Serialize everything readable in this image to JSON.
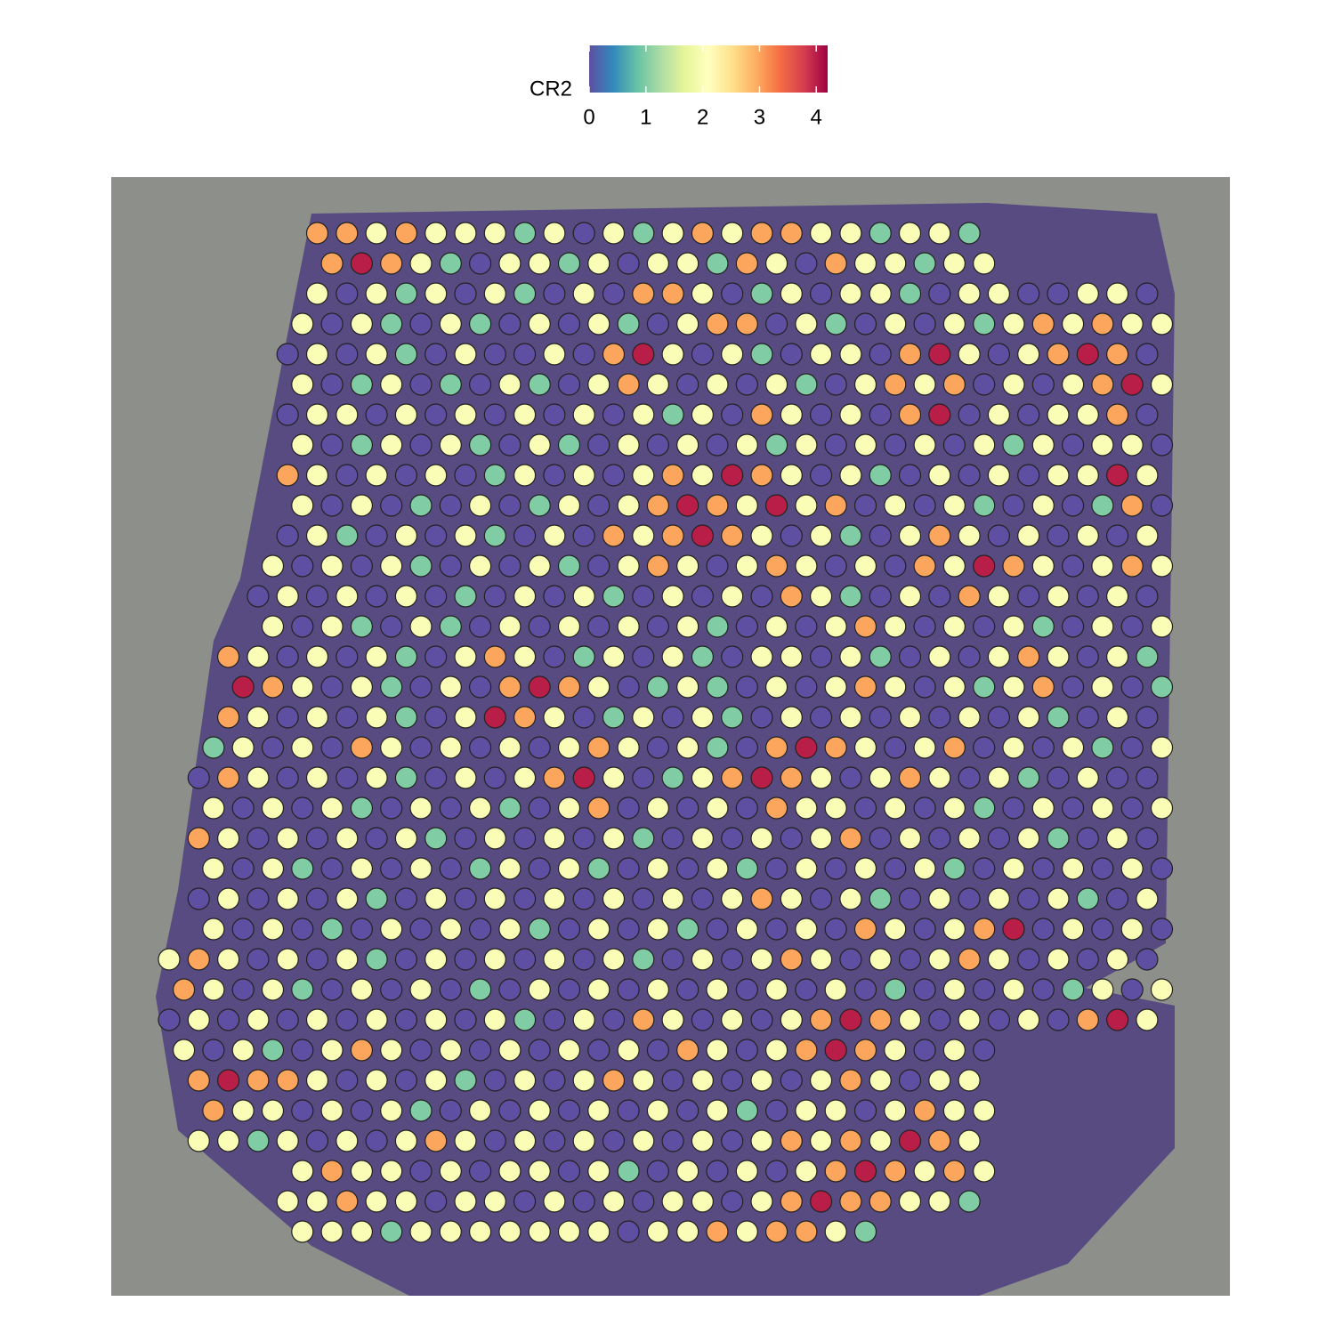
{
  "chart_data": {
    "type": "spatial",
    "colorbar": {
      "title": "CR2",
      "limits": [
        0,
        4.2
      ],
      "ticks": [
        0,
        1,
        2,
        3,
        4
      ],
      "colors": [
        "#5e4fa2",
        "#3288bd",
        "#66c2a5",
        "#abdda4",
        "#e6f598",
        "#ffffbf",
        "#fee08b",
        "#fdae61",
        "#f46d43",
        "#d53e4f",
        "#9e0142"
      ]
    },
    "spots": [
      [
        null,
        null,
        null,
        null,
        null,
        3,
        3,
        2,
        3,
        2,
        2,
        2,
        1,
        2,
        0,
        2,
        1,
        2,
        3,
        2,
        3,
        3,
        2,
        2,
        1,
        2,
        2,
        1,
        null,
        null,
        null,
        null,
        null,
        null
      ],
      [
        null,
        null,
        null,
        null,
        null,
        3,
        4,
        3,
        2,
        1,
        0,
        2,
        2,
        1,
        2,
        0,
        2,
        2,
        1,
        3,
        2,
        0,
        3,
        2,
        2,
        1,
        2,
        2,
        null,
        null,
        null,
        null,
        null,
        null
      ],
      [
        null,
        null,
        null,
        null,
        null,
        2,
        0,
        2,
        1,
        2,
        0,
        2,
        1,
        0,
        2,
        0,
        3,
        3,
        2,
        0,
        1,
        2,
        0,
        2,
        2,
        1,
        0,
        2,
        2,
        0,
        0,
        2,
        2,
        0
      ],
      [
        null,
        null,
        null,
        null,
        2,
        0,
        2,
        1,
        0,
        2,
        1,
        0,
        2,
        0,
        2,
        1,
        0,
        2,
        3,
        3,
        0,
        2,
        1,
        0,
        2,
        0,
        2,
        1,
        2,
        3,
        2,
        3,
        2,
        2
      ],
      [
        null,
        null,
        null,
        null,
        0,
        2,
        0,
        2,
        1,
        0,
        2,
        0,
        0,
        2,
        0,
        3,
        4,
        2,
        0,
        2,
        1,
        0,
        2,
        2,
        0,
        3,
        4,
        2,
        0,
        2,
        3,
        4,
        3,
        0
      ],
      [
        null,
        null,
        null,
        null,
        2,
        0,
        1,
        2,
        0,
        1,
        0,
        2,
        1,
        0,
        2,
        3,
        2,
        0,
        2,
        0,
        2,
        1,
        0,
        2,
        3,
        2,
        3,
        0,
        2,
        0,
        2,
        3,
        4,
        2
      ],
      [
        null,
        null,
        null,
        null,
        0,
        2,
        2,
        0,
        2,
        0,
        2,
        0,
        2,
        0,
        2,
        0,
        2,
        1,
        2,
        0,
        3,
        2,
        0,
        2,
        0,
        3,
        4,
        0,
        2,
        0,
        2,
        2,
        3,
        0
      ],
      [
        null,
        null,
        null,
        null,
        2,
        0,
        1,
        2,
        0,
        2,
        1,
        0,
        2,
        1,
        0,
        2,
        0,
        2,
        0,
        2,
        1,
        2,
        0,
        2,
        0,
        2,
        0,
        2,
        1,
        2,
        0,
        2,
        2,
        0
      ],
      [
        null,
        null,
        null,
        null,
        3,
        2,
        0,
        2,
        0,
        2,
        0,
        1,
        2,
        0,
        2,
        0,
        2,
        3,
        2,
        4,
        3,
        2,
        0,
        2,
        1,
        0,
        2,
        0,
        2,
        0,
        2,
        2,
        4,
        2
      ],
      [
        null,
        null,
        null,
        null,
        2,
        0,
        2,
        0,
        1,
        0,
        2,
        0,
        1,
        2,
        0,
        2,
        3,
        4,
        3,
        2,
        4,
        2,
        3,
        0,
        2,
        0,
        2,
        1,
        0,
        2,
        0,
        1,
        3,
        0
      ],
      [
        null,
        null,
        null,
        null,
        0,
        2,
        1,
        0,
        2,
        0,
        2,
        1,
        0,
        2,
        0,
        3,
        2,
        3,
        4,
        3,
        2,
        0,
        2,
        1,
        0,
        2,
        3,
        2,
        0,
        2,
        0,
        2,
        0,
        2
      ],
      [
        null,
        null,
        null,
        2,
        0,
        2,
        0,
        2,
        1,
        0,
        2,
        0,
        2,
        1,
        0,
        2,
        3,
        2,
        0,
        2,
        3,
        2,
        0,
        2,
        0,
        3,
        2,
        4,
        3,
        2,
        0,
        2,
        3,
        2
      ],
      [
        null,
        null,
        null,
        0,
        2,
        0,
        2,
        0,
        2,
        0,
        1,
        0,
        2,
        0,
        2,
        1,
        0,
        2,
        0,
        2,
        0,
        3,
        2,
        1,
        0,
        2,
        0,
        3,
        2,
        0,
        2,
        0,
        2,
        0
      ],
      [
        null,
        null,
        null,
        2,
        0,
        2,
        1,
        0,
        2,
        1,
        0,
        2,
        0,
        2,
        0,
        2,
        0,
        2,
        1,
        0,
        2,
        0,
        2,
        3,
        2,
        0,
        2,
        0,
        2,
        1,
        0,
        2,
        0,
        2
      ],
      [
        null,
        null,
        3,
        2,
        0,
        2,
        0,
        2,
        1,
        0,
        2,
        3,
        2,
        0,
        1,
        2,
        0,
        2,
        1,
        0,
        2,
        2,
        0,
        2,
        1,
        0,
        2,
        0,
        2,
        3,
        2,
        0,
        2,
        1
      ],
      [
        null,
        null,
        4,
        3,
        2,
        0,
        2,
        1,
        0,
        2,
        0,
        3,
        4,
        3,
        2,
        0,
        1,
        2,
        1,
        0,
        2,
        0,
        2,
        3,
        2,
        0,
        2,
        1,
        2,
        3,
        0,
        2,
        0,
        1
      ],
      [
        null,
        null,
        3,
        2,
        0,
        2,
        0,
        2,
        1,
        0,
        2,
        4,
        3,
        2,
        0,
        1,
        2,
        0,
        2,
        1,
        0,
        2,
        0,
        2,
        0,
        2,
        0,
        2,
        0,
        2,
        1,
        0,
        2,
        0
      ],
      [
        null,
        1,
        2,
        0,
        2,
        0,
        3,
        2,
        0,
        2,
        0,
        2,
        0,
        2,
        3,
        2,
        0,
        2,
        1,
        0,
        3,
        4,
        3,
        2,
        0,
        2,
        3,
        0,
        2,
        0,
        2,
        1,
        0,
        2
      ],
      [
        null,
        0,
        3,
        2,
        0,
        2,
        0,
        2,
        1,
        0,
        2,
        0,
        2,
        3,
        4,
        2,
        0,
        1,
        2,
        3,
        4,
        3,
        2,
        0,
        2,
        3,
        2,
        0,
        2,
        1,
        0,
        2,
        0,
        0
      ],
      [
        null,
        2,
        0,
        2,
        0,
        2,
        1,
        0,
        2,
        0,
        2,
        1,
        0,
        2,
        3,
        0,
        2,
        0,
        2,
        0,
        3,
        2,
        2,
        0,
        2,
        0,
        2,
        1,
        0,
        2,
        0,
        2,
        0,
        2
      ],
      [
        null,
        3,
        2,
        0,
        2,
        0,
        2,
        0,
        2,
        1,
        0,
        2,
        0,
        2,
        0,
        2,
        1,
        0,
        2,
        0,
        2,
        0,
        2,
        3,
        0,
        2,
        0,
        2,
        0,
        2,
        1,
        0,
        2,
        0
      ],
      [
        null,
        2,
        0,
        2,
        1,
        0,
        2,
        0,
        2,
        0,
        1,
        2,
        0,
        2,
        1,
        0,
        2,
        0,
        2,
        1,
        0,
        2,
        0,
        2,
        0,
        2,
        1,
        0,
        2,
        0,
        2,
        0,
        2,
        0
      ],
      [
        null,
        0,
        2,
        0,
        2,
        0,
        2,
        1,
        0,
        2,
        0,
        2,
        0,
        2,
        0,
        2,
        0,
        2,
        0,
        2,
        3,
        2,
        0,
        2,
        1,
        0,
        2,
        0,
        2,
        0,
        2,
        1,
        0,
        2
      ],
      [
        null,
        2,
        0,
        2,
        0,
        1,
        0,
        2,
        0,
        2,
        0,
        2,
        1,
        0,
        2,
        0,
        2,
        1,
        0,
        2,
        0,
        2,
        0,
        3,
        2,
        0,
        2,
        3,
        4,
        0,
        2,
        0,
        2,
        0
      ],
      [
        2,
        3,
        2,
        0,
        2,
        0,
        2,
        1,
        0,
        2,
        0,
        2,
        0,
        2,
        0,
        2,
        1,
        0,
        2,
        0,
        2,
        3,
        2,
        0,
        2,
        0,
        2,
        3,
        2,
        0,
        2,
        0,
        2,
        0
      ],
      [
        3,
        2,
        0,
        2,
        1,
        0,
        2,
        0,
        2,
        0,
        1,
        0,
        2,
        0,
        2,
        0,
        2,
        0,
        2,
        0,
        2,
        0,
        2,
        0,
        1,
        0,
        2,
        0,
        2,
        0,
        1,
        2,
        0,
        2
      ],
      [
        0,
        2,
        0,
        2,
        0,
        2,
        0,
        2,
        0,
        2,
        0,
        2,
        1,
        0,
        2,
        0,
        3,
        2,
        0,
        2,
        0,
        2,
        3,
        4,
        3,
        2,
        0,
        2,
        0,
        2,
        0,
        3,
        4,
        2
      ],
      [
        2,
        0,
        2,
        1,
        0,
        2,
        3,
        2,
        0,
        2,
        0,
        2,
        0,
        2,
        0,
        2,
        0,
        3,
        2,
        0,
        2,
        3,
        4,
        3,
        2,
        0,
        2,
        0,
        null,
        null,
        null,
        null,
        null,
        null
      ],
      [
        null,
        3,
        4,
        3,
        3,
        2,
        0,
        2,
        0,
        2,
        1,
        0,
        2,
        0,
        2,
        3,
        2,
        0,
        2,
        0,
        2,
        0,
        2,
        3,
        2,
        0,
        2,
        2,
        null,
        null,
        null,
        null,
        null,
        null
      ],
      [
        null,
        3,
        2,
        2,
        0,
        2,
        0,
        2,
        1,
        0,
        2,
        0,
        2,
        0,
        2,
        0,
        2,
        0,
        2,
        1,
        0,
        2,
        2,
        0,
        2,
        3,
        2,
        2,
        null,
        null,
        null,
        null,
        null,
        null
      ],
      [
        null,
        2,
        2,
        1,
        2,
        0,
        2,
        0,
        2,
        3,
        2,
        0,
        2,
        0,
        2,
        0,
        2,
        0,
        2,
        0,
        2,
        3,
        2,
        3,
        2,
        4,
        3,
        2,
        null,
        null,
        null,
        null,
        null,
        null
      ],
      [
        null,
        null,
        null,
        null,
        2,
        3,
        2,
        2,
        0,
        2,
        0,
        2,
        2,
        0,
        2,
        1,
        0,
        2,
        0,
        2,
        0,
        2,
        3,
        4,
        3,
        2,
        3,
        2,
        null,
        null,
        null,
        null,
        null,
        null
      ],
      [
        null,
        null,
        null,
        null,
        2,
        2,
        3,
        2,
        2,
        0,
        2,
        2,
        0,
        2,
        0,
        2,
        0,
        2,
        2,
        0,
        2,
        3,
        4,
        3,
        3,
        2,
        2,
        1,
        null,
        null,
        null,
        null,
        null,
        null
      ],
      [
        null,
        null,
        null,
        null,
        2,
        2,
        2,
        1,
        2,
        2,
        2,
        2,
        2,
        2,
        2,
        0,
        2,
        2,
        3,
        2,
        3,
        3,
        2,
        1,
        null,
        null,
        null,
        null,
        null,
        null,
        null,
        null,
        null,
        null
      ]
    ]
  }
}
